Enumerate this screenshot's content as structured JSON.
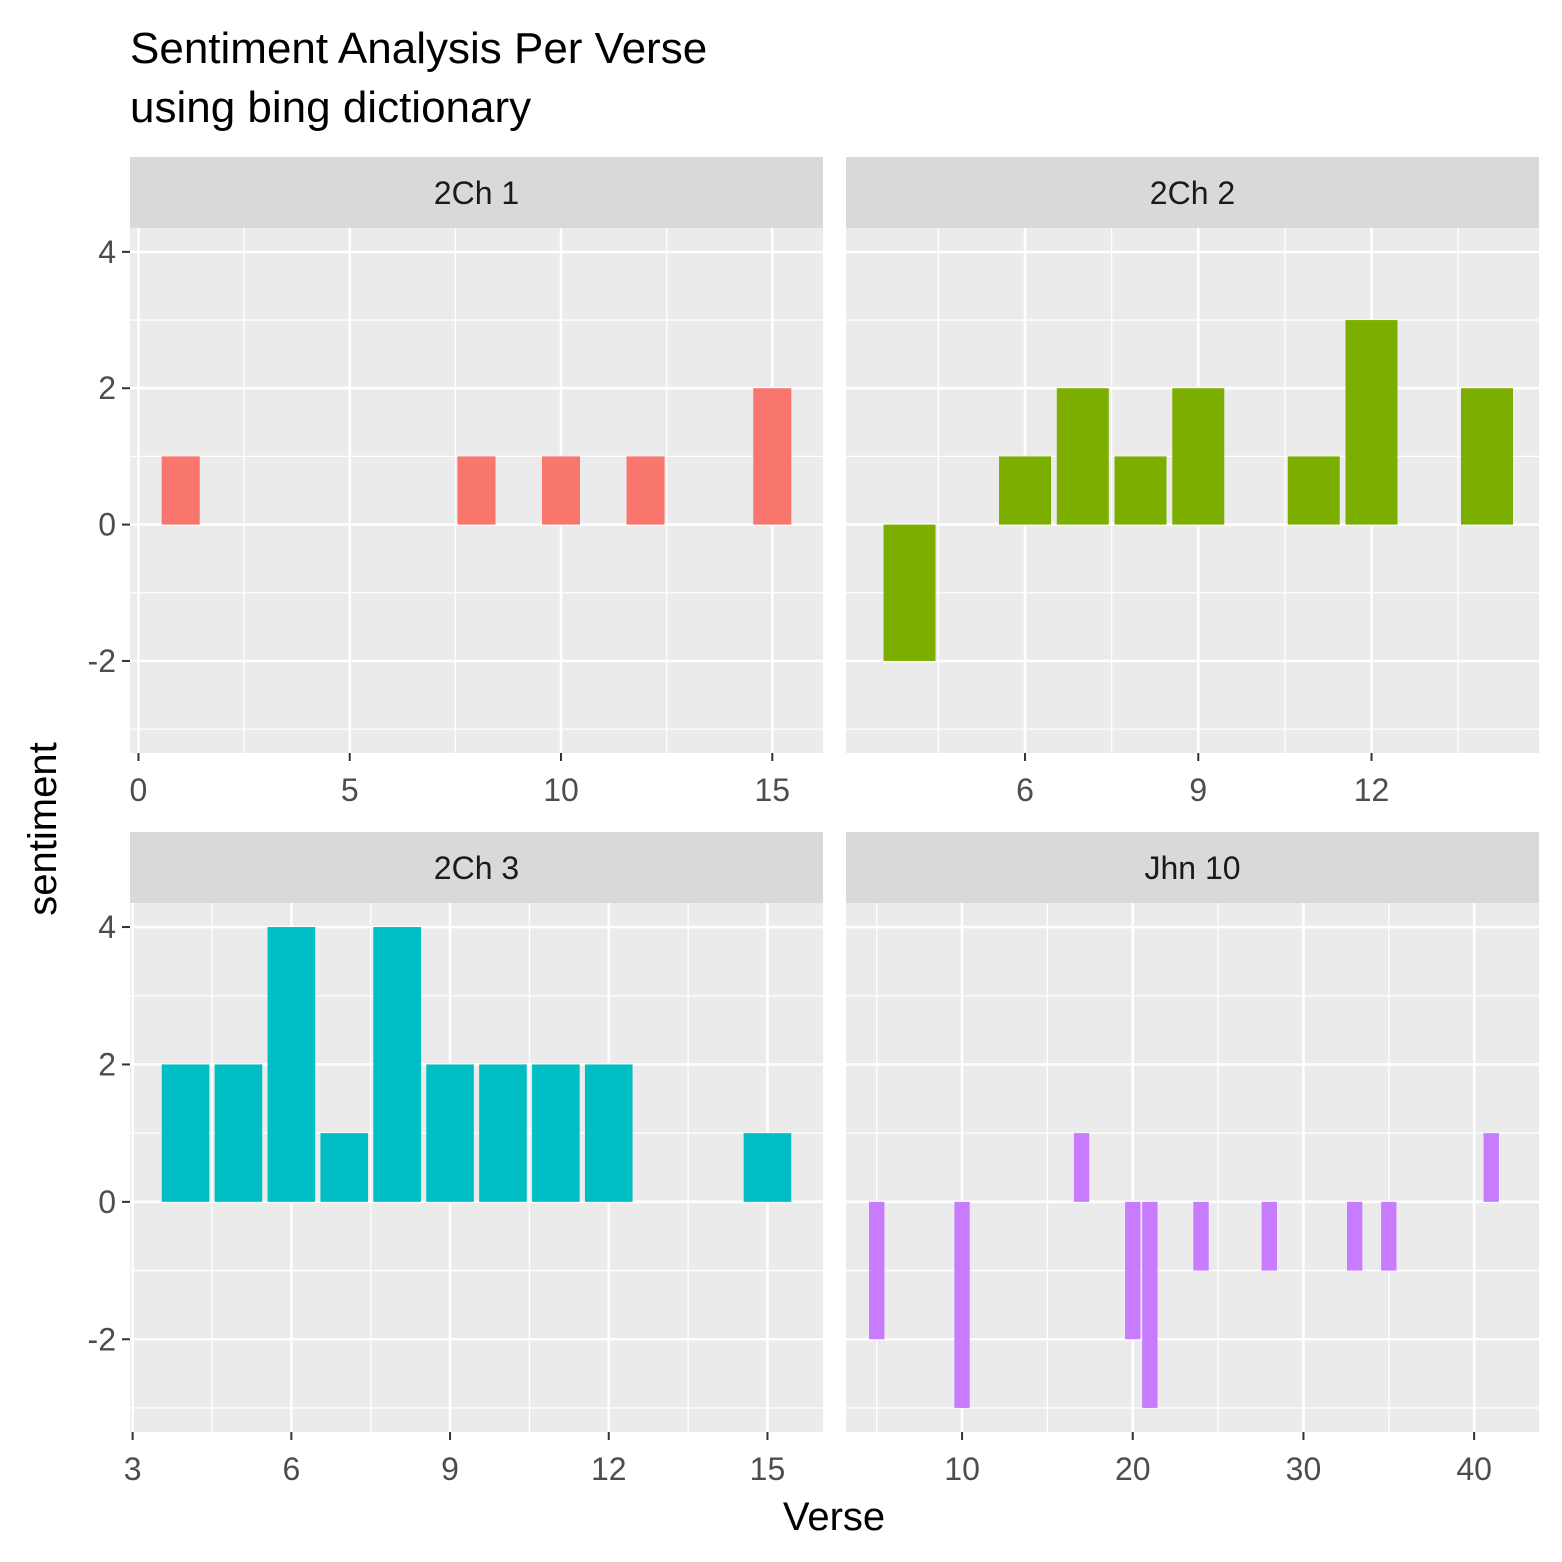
{
  "chart_data": {
    "type": "bar",
    "title": "Sentiment Analysis Per Verse",
    "subtitle": "using bing dictionary",
    "xlabel": "Verse",
    "ylabel": "sentiment",
    "grid": true,
    "legend": "none",
    "y_ticks": [
      -2,
      0,
      2,
      4
    ],
    "facets": [
      {
        "label": "2Ch 1",
        "color": "#F8766D",
        "xlim": [
          -0.2,
          16.2
        ],
        "x_ticks": [
          0,
          5,
          10,
          15
        ],
        "ylim": [
          -3.35,
          4.35
        ],
        "bars": [
          {
            "x": 1,
            "y": 1
          },
          {
            "x": 8,
            "y": 1
          },
          {
            "x": 10,
            "y": 1
          },
          {
            "x": 12,
            "y": 1
          },
          {
            "x": 15,
            "y": 2
          }
        ]
      },
      {
        "label": "2Ch 2",
        "color": "#7CAE00",
        "xlim": [
          2.9,
          14.9
        ],
        "x_ticks": [
          6,
          9,
          12
        ],
        "ylim": [
          -3.35,
          4.35
        ],
        "bars": [
          {
            "x": 4,
            "y": -2
          },
          {
            "x": 6,
            "y": 1
          },
          {
            "x": 7,
            "y": 2
          },
          {
            "x": 8,
            "y": 1
          },
          {
            "x": 9,
            "y": 2
          },
          {
            "x": 11,
            "y": 1
          },
          {
            "x": 12,
            "y": 3
          },
          {
            "x": 14,
            "y": 2
          }
        ]
      },
      {
        "label": "2Ch 3",
        "color": "#00BFC4",
        "xlim": [
          2.95,
          16.05
        ],
        "x_ticks": [
          3,
          6,
          9,
          12,
          15
        ],
        "ylim": [
          -3.35,
          4.35
        ],
        "bars": [
          {
            "x": 4,
            "y": 2
          },
          {
            "x": 5,
            "y": 2
          },
          {
            "x": 6,
            "y": 4
          },
          {
            "x": 7,
            "y": 1
          },
          {
            "x": 8,
            "y": 4
          },
          {
            "x": 9,
            "y": 2
          },
          {
            "x": 10,
            "y": 2
          },
          {
            "x": 11,
            "y": 2
          },
          {
            "x": 12,
            "y": 2
          },
          {
            "x": 15,
            "y": 1
          }
        ]
      },
      {
        "label": "Jhn 10",
        "color": "#C77CFF",
        "xlim": [
          3.2,
          43.8
        ],
        "x_ticks": [
          10,
          20,
          30,
          40
        ],
        "ylim": [
          -3.35,
          4.35
        ],
        "bars": [
          {
            "x": 5,
            "y": -2
          },
          {
            "x": 10,
            "y": -3
          },
          {
            "x": 17,
            "y": 1
          },
          {
            "x": 20,
            "y": -2
          },
          {
            "x": 21,
            "y": -3
          },
          {
            "x": 24,
            "y": -1
          },
          {
            "x": 28,
            "y": -1
          },
          {
            "x": 33,
            "y": -1
          },
          {
            "x": 35,
            "y": -1
          },
          {
            "x": 41,
            "y": 1
          }
        ]
      }
    ]
  }
}
